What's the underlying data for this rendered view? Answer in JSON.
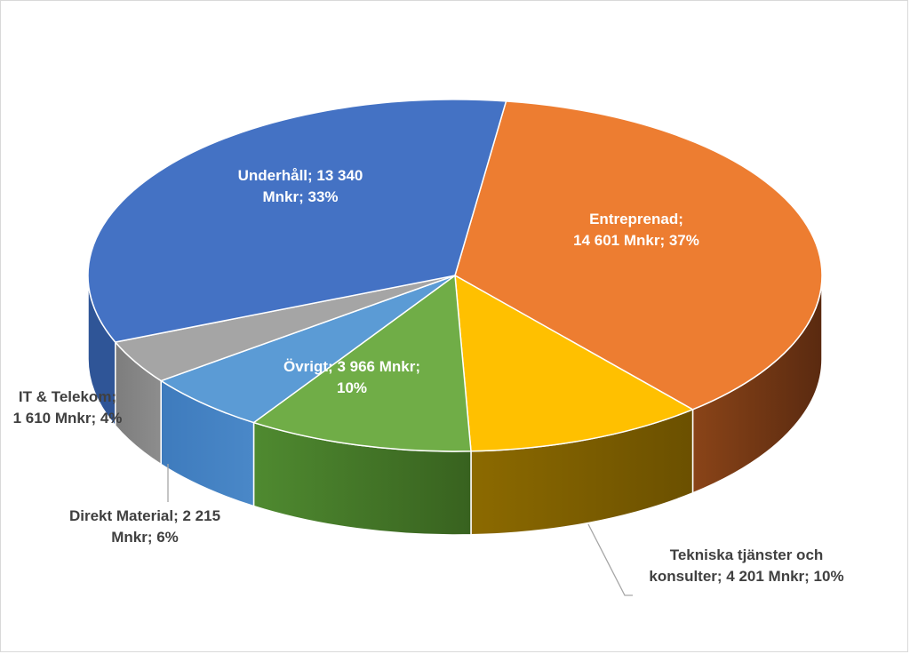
{
  "chart_data": {
    "type": "pie",
    "three_d": true,
    "title": "",
    "unit": "Mnkr",
    "slices": [
      {
        "name": "Entreprenad",
        "value": 14601,
        "percent": 37,
        "color": "#ED7D31",
        "label_lines": [
          "Entreprenad;",
          "14 601 Mnkr; 37%"
        ],
        "label_position": "inside"
      },
      {
        "name": "Tekniska tjänster och konsulter",
        "value": 4201,
        "percent": 10,
        "color": "#FFC000",
        "label_lines": [
          "Tekniska tjänster och",
          "konsulter; 4 201 Mnkr; 10%"
        ],
        "label_position": "outside"
      },
      {
        "name": "Övrigt",
        "value": 3966,
        "percent": 10,
        "color": "#70AD47",
        "label_lines": [
          "Övrigt; 3 966 Mnkr;",
          "10%"
        ],
        "label_position": "inside"
      },
      {
        "name": "Direkt Material",
        "value": 2215,
        "percent": 6,
        "color": "#5B9BD5",
        "label_lines": [
          "Direkt Material; 2 215",
          "Mnkr; 6%"
        ],
        "label_position": "outside"
      },
      {
        "name": "IT & Telekom",
        "value": 1610,
        "percent": 4,
        "color": "#A5A5A5",
        "label_lines": [
          "IT & Telekom;",
          "1 610 Mnkr; 4%"
        ],
        "label_position": "outside"
      },
      {
        "name": "Underhåll",
        "value": 13340,
        "percent": 33,
        "color": "#4472C4",
        "label_lines": [
          "Underhåll; 13 340",
          "Mnkr; 33%"
        ],
        "label_position": "inside"
      }
    ]
  }
}
